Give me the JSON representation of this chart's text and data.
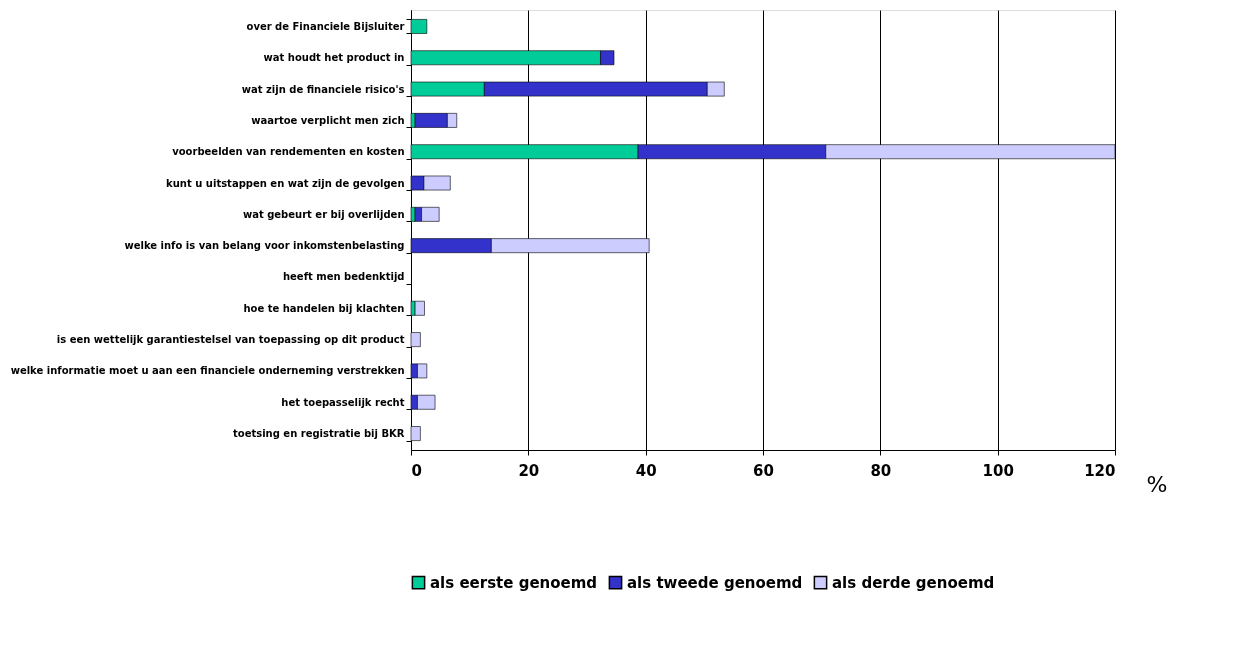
{
  "chart_data": {
    "type": "bar",
    "orientation": "horizontal",
    "stacked": true,
    "xlabel": "%",
    "categories": [
      "over de Financiele Bijsluiter",
      "wat houdt het product in",
      "wat zijn de financiele risico's",
      "waartoe verplicht men zich",
      "voorbeelden van rendementen en kosten",
      "kunt u uitstappen en wat zijn de gevolgen",
      "wat gebeurt er bij overlijden",
      "welke info is van belang voor inkomstenbelasting",
      "heeft men bedenktijd",
      "hoe te handelen bij klachten",
      "is een wettelijk garantiestelsel van toepassing op dit product",
      "welke informatie moet u aan een financiele onderneming verstrekken",
      "het toepasselijk recht",
      "toetsing en registratie bij BKR"
    ],
    "series": [
      {
        "name": "als eerste genoemd",
        "color": "#00cc99",
        "values": [
          2.7,
          32.3,
          12.5,
          0.7,
          38.7,
          0,
          0.7,
          0,
          0,
          0.7,
          0,
          0,
          0,
          0
        ]
      },
      {
        "name": "als tweede genoemd",
        "color": "#3333cc",
        "values": [
          0,
          2.3,
          38,
          5.5,
          32,
          2.2,
          1.1,
          13.7,
          0,
          0,
          0,
          1.1,
          1.1,
          0
        ]
      },
      {
        "name": "als derde genoemd",
        "color": "#ccccff",
        "values": [
          0,
          0,
          2.9,
          1.6,
          49.3,
          4.5,
          3.0,
          26.9,
          0,
          1.6,
          1.6,
          1.6,
          3.0,
          1.6
        ]
      }
    ],
    "xlim": [
      0,
      120
    ],
    "xticks": [
      0,
      20,
      40,
      60,
      80,
      100,
      120
    ],
    "grid": "x",
    "legend": "bottom"
  }
}
